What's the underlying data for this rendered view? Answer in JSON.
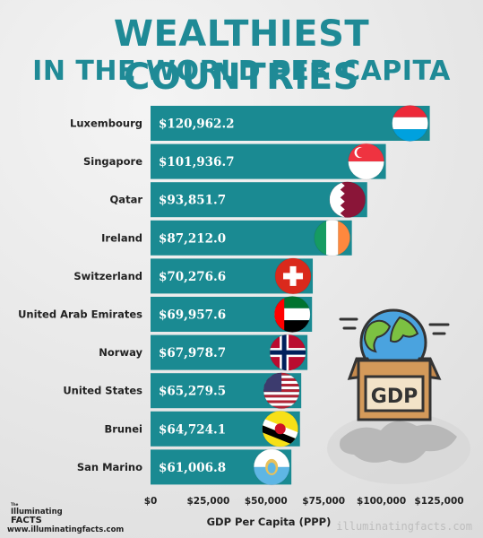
{
  "header": {
    "title_line1": "WEALTHIEST COUNTRIES",
    "title_line2": "IN THE WORLD PER CAPITA"
  },
  "chart_data": {
    "type": "bar",
    "orientation": "horizontal",
    "categories": [
      "Luxembourg",
      "Singapore",
      "Qatar",
      "Ireland",
      "Switzerland",
      "United Arab Emirates",
      "Norway",
      "United States",
      "Brunei",
      "San Marino"
    ],
    "values": [
      120962.2,
      101936.7,
      93851.7,
      87212.0,
      70276.6,
      69957.6,
      67978.7,
      65279.5,
      64724.1,
      61006.8
    ],
    "value_labels": [
      "$120,962.2",
      "$101,936.7",
      "$93,851.7",
      "$87,212.0",
      "$70,276.6",
      "$69,957.6",
      "$67,978.7",
      "$65,279.5",
      "$64,724.1",
      "$61,006.8"
    ],
    "x_ticks": [
      0,
      25000,
      50000,
      75000,
      100000,
      125000
    ],
    "x_tick_labels": [
      "$0",
      "$25,000",
      "$50,000",
      "$75,000",
      "$100,000",
      "$125,000"
    ],
    "xlabel": "GDP Per Capita (PPP)",
    "ylabel": "",
    "xlim": [
      0,
      125000
    ],
    "grid": false,
    "bar_color": "#1a8a92",
    "flags": [
      "luxembourg-flag",
      "singapore-flag",
      "qatar-flag",
      "ireland-flag",
      "switzerland-flag",
      "uae-flag",
      "norway-flag",
      "usa-flag",
      "brunei-flag",
      "san-marino-flag"
    ]
  },
  "illustration": {
    "box_label": "GDP",
    "icon": "globe-box-icon"
  },
  "footer": {
    "brand_small": "The",
    "brand_line1": "Illuminating",
    "brand_line2": "FACTS",
    "website": "www.illuminatingfacts.com",
    "watermark": "illuminatingfacts.com"
  }
}
